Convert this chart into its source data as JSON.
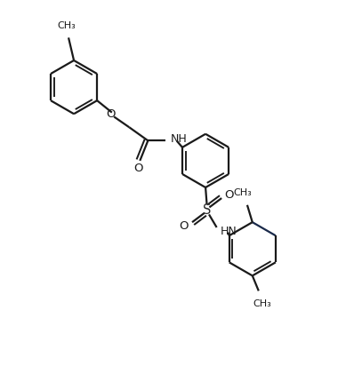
{
  "bg_color": "#ffffff",
  "line_color": "#1a1a1a",
  "dark_bond_color": "#1a2a4a",
  "line_width": 1.6,
  "figsize": [
    4.07,
    4.21
  ],
  "dpi": 100,
  "xlim": [
    0,
    10
  ],
  "ylim": [
    0,
    10
  ]
}
